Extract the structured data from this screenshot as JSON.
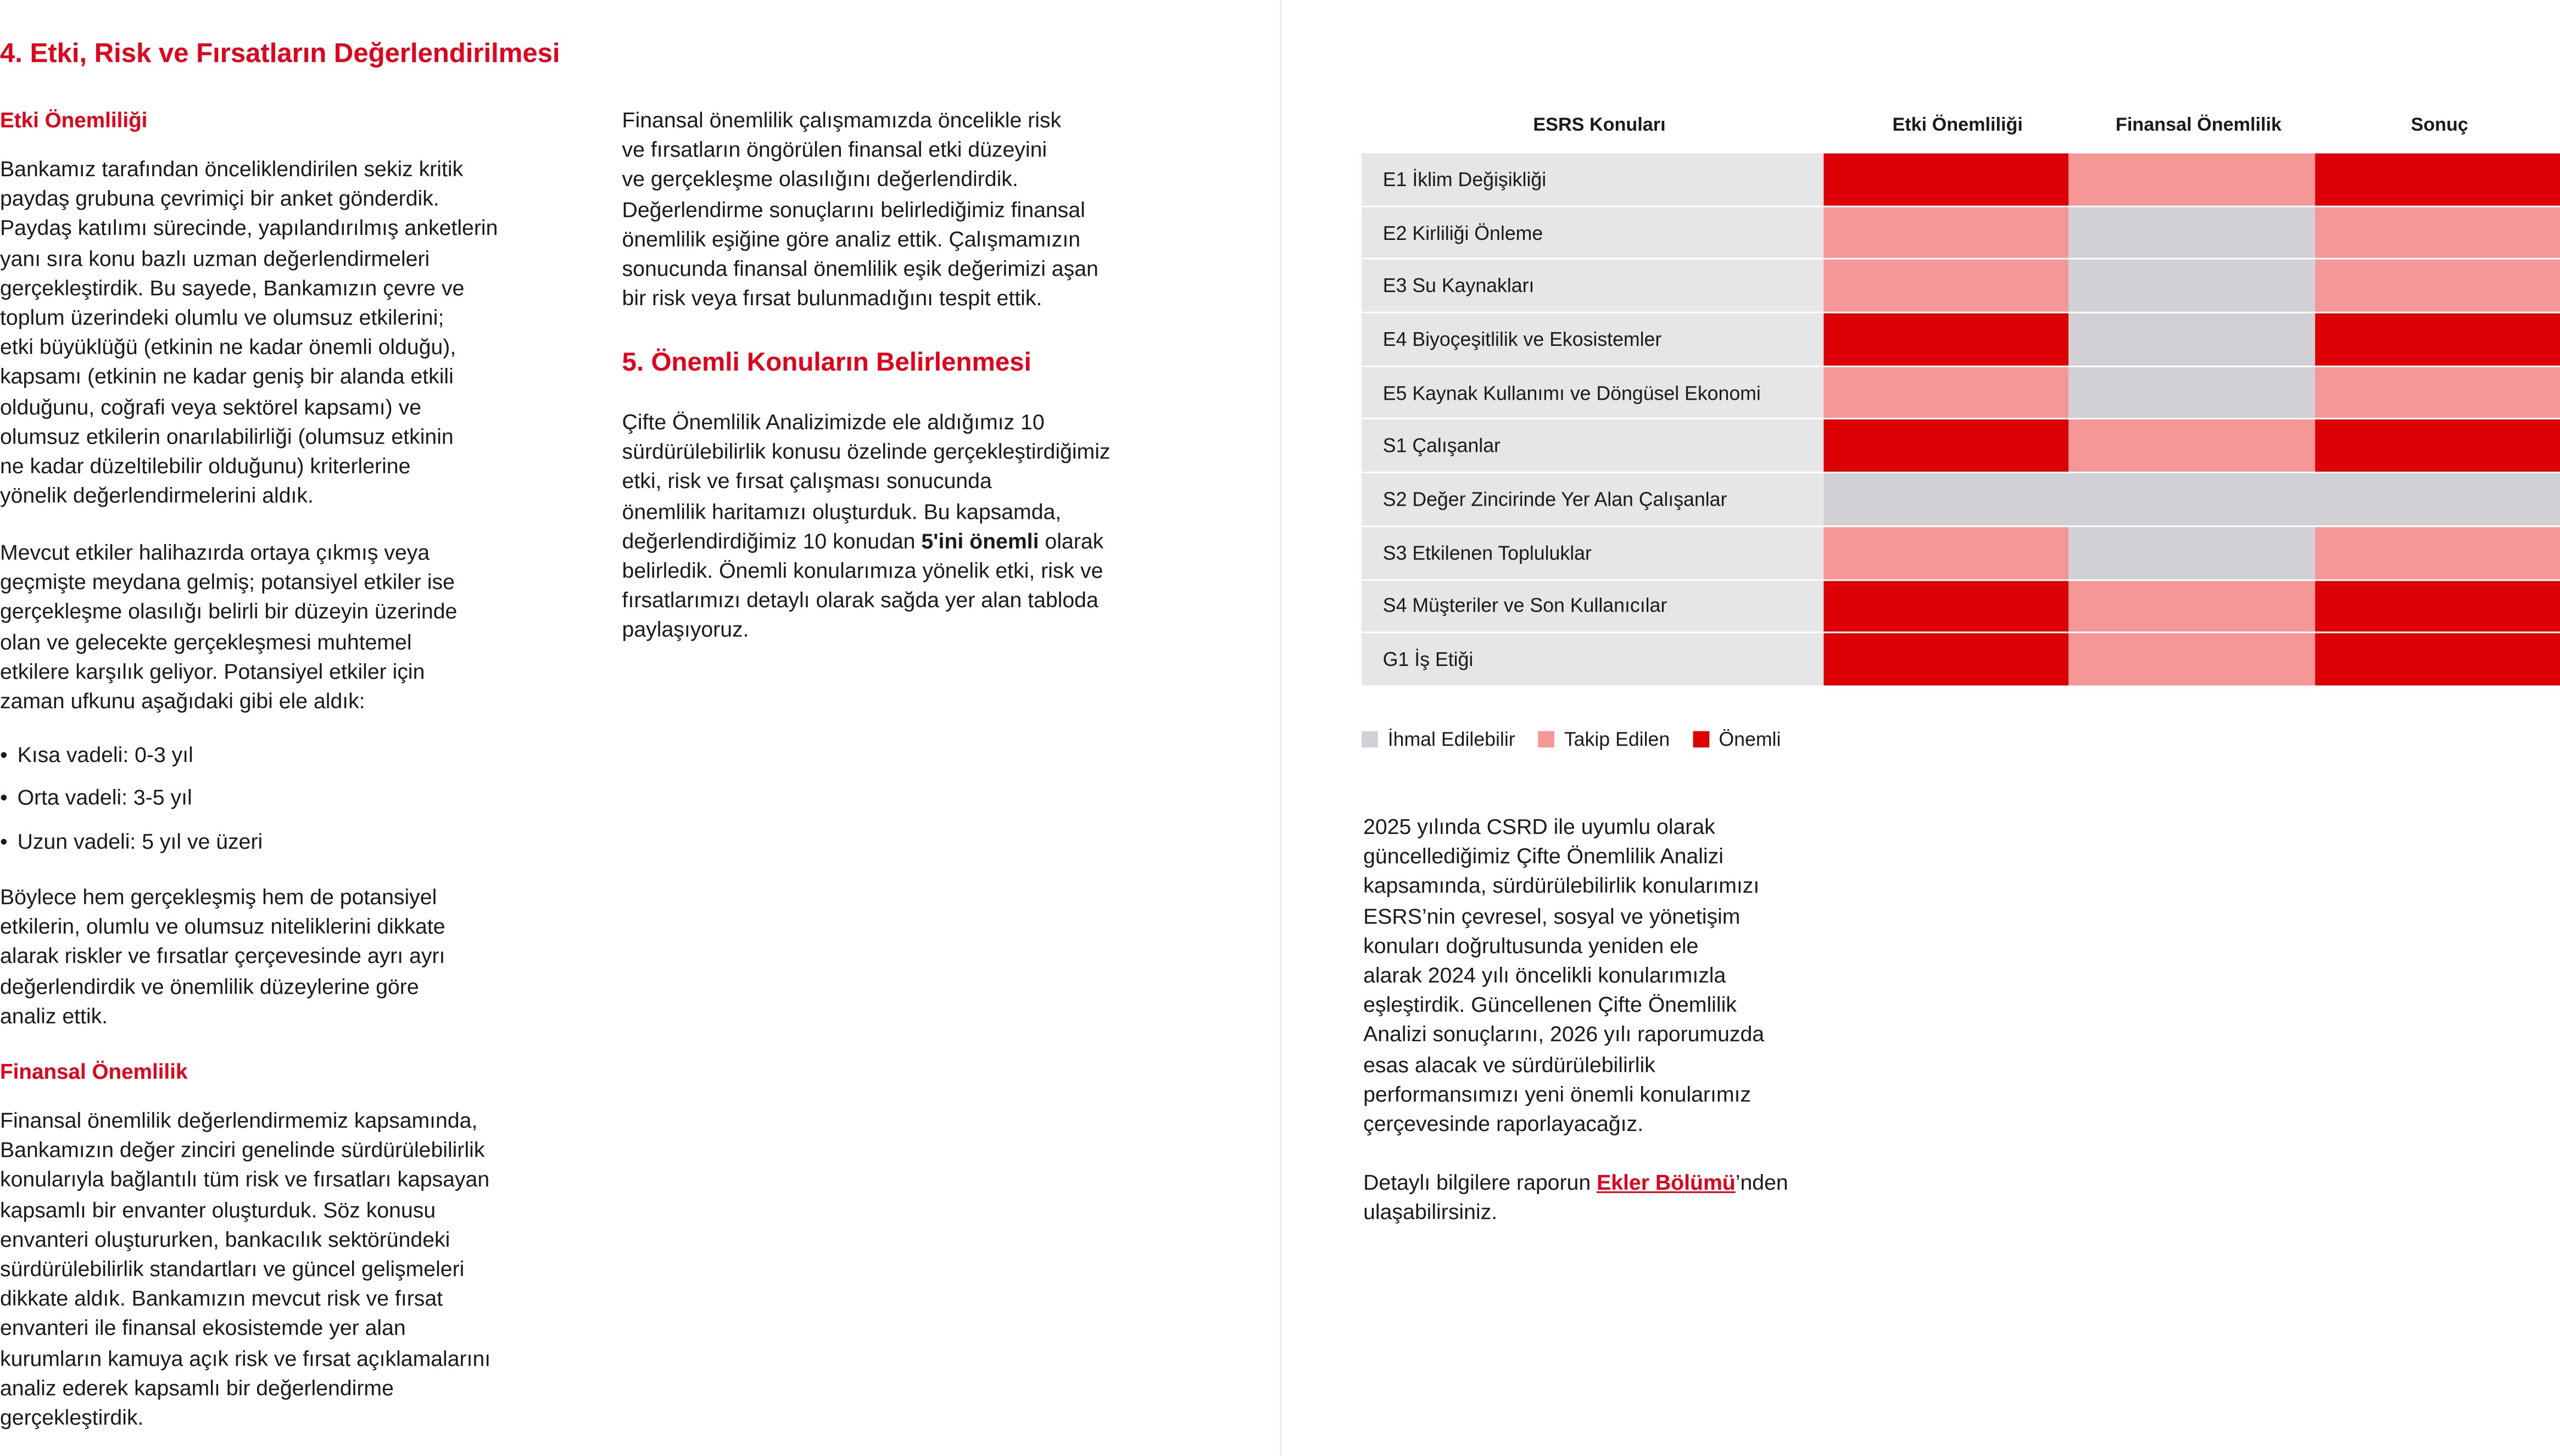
{
  "title": "4. Etki, Risk ve Fırsatların Değerlendirilmesi",
  "left": {
    "h_impact": "Etki Önemliliği",
    "p1": "Bankamız tarafından önceliklendirilen sekiz kritik\npaydaş grubuna çevrimiçi bir anket gönderdik.\nPaydaş katılımı sürecinde, yapılandırılmış anketlerin\nyanı sıra konu bazlı uzman değerlendirmeleri\ngerçekleştirdik. Bu sayede, Bankamızın çevre ve\ntoplum üzerindeki olumlu ve olumsuz etkilerini;\netki büyüklüğü (etkinin ne kadar önemli olduğu),\nkapsamı (etkinin ne kadar geniş bir alanda etkili\nolduğunu, coğrafi veya sektörel kapsamı) ve\nolumsuz etkilerin onarılabilirliği (olumsuz etkinin\nne kadar düzeltilebilir olduğunu) kriterlerine\nyönelik değerlendirmelerini aldık.",
    "p2": "Mevcut etkiler halihazırda ortaya çıkmış veya\ngeçmişte meydana gelmiş; potansiyel etkiler ise\ngerçekleşme olasılığı belirli bir düzeyin üzerinde\nolan ve gelecekte gerçekleşmesi muhtemel\netkilere karşılık geliyor. Potansiyel etkiler için\nzaman ufkunu aşağıdaki gibi ele aldık:",
    "bullets": [
      "Kısa vadeli: 0-3 yıl",
      "Orta vadeli: 3-5 yıl",
      "Uzun vadeli: 5 yıl ve üzeri"
    ],
    "p3": "Böylece hem gerçekleşmiş hem de potansiyel\netkilerin, olumlu ve olumsuz niteliklerini dikkate\nalarak riskler ve fırsatlar çerçevesinde ayrı ayrı\ndeğerlendirdik ve önemlilik düzeylerine göre\nanaliz ettik.",
    "h_fin": "Finansal Önemlilik",
    "p4": "Finansal önemlilik değerlendirmemiz kapsamında,\nBankamızın değer zinciri genelinde sürdürülebilirlik\nkonularıyla bağlantılı tüm risk ve fırsatları kapsayan\nkapsamlı bir envanter oluşturduk. Söz konusu\nenvanteri oluştururken, bankacılık sektöründeki\nsürdürülebilirlik standartları ve güncel gelişmeleri\ndikkate aldık. Bankamızın mevcut risk ve fırsat\nenvanteri ile finansal ekosistemde yer alan\nkurumların kamuya açık risk ve fırsat açıklamalarını\nanaliz ederek kapsamlı bir değerlendirme\ngerçekleştirdik."
  },
  "middle": {
    "p1": "Finansal önemlilik çalışmamızda öncelikle risk\nve fırsatların öngörülen finansal etki düzeyini\nve gerçekleşme olasılığını değerlendirdik.\nDeğerlendirme sonuçlarını belirlediğimiz finansal\nönemlilik eşiğine göre analiz ettik. Çalışmamızın\nsonucunda finansal önemlilik eşik değerimizi aşan\nbir risk veya fırsat bulunmadığını tespit ettik.",
    "h5": "5. Önemli Konuların Belirlenmesi",
    "p2a": "Çifte Önemlilik Analizimizde ele aldığımız 10\nsürdürülebilirlik konusu özelinde gerçekleştirdiğimiz\netki, risk ve fırsat çalışması sonucunda\nönemlilik haritamızı oluşturduk. Bu kapsamda,\ndeğerlendirdiğimiz 10 konudan ",
    "p2bold": "5'ini önemli",
    "p2b": " olarak\nbelirledik. Önemli konularımıza yönelik etki, risk ve\nfırsatlarımızı detaylı olarak sağda yer alan tabloda\npaylaşıyoruz."
  },
  "table": {
    "headers": [
      "ESRS Konuları",
      "Etki Önemliliği",
      "Finansal Önemlilik",
      "Sonuç"
    ],
    "colors": {
      "onemli": "#dc0005",
      "takip": "#f59797",
      "ihmal": "#d1d0d5"
    },
    "rows": [
      {
        "label": "E1 İklim Değişikliği",
        "levels": [
          "onemli",
          "takip",
          "onemli"
        ]
      },
      {
        "label": "E2 Kirliliği Önleme",
        "levels": [
          "takip",
          "ihmal",
          "takip"
        ]
      },
      {
        "label": "E3 Su Kaynakları",
        "levels": [
          "takip",
          "ihmal",
          "takip"
        ]
      },
      {
        "label": "E4 Biyoçeşitlilik ve Ekosistemler",
        "levels": [
          "onemli",
          "ihmal",
          "onemli"
        ]
      },
      {
        "label": "E5 Kaynak Kullanımı ve Döngüsel Ekonomi",
        "levels": [
          "takip",
          "ihmal",
          "takip"
        ]
      },
      {
        "label": "S1 Çalışanlar",
        "levels": [
          "onemli",
          "takip",
          "onemli"
        ]
      },
      {
        "label": "S2 Değer Zincirinde Yer Alan Çalışanlar",
        "levels": [
          "ihmal",
          "ihmal",
          "ihmal"
        ]
      },
      {
        "label": "S3 Etkilenen Topluluklar",
        "levels": [
          "takip",
          "ihmal",
          "takip"
        ]
      },
      {
        "label": "S4 Müşteriler ve Son Kullanıcılar",
        "levels": [
          "onemli",
          "takip",
          "onemli"
        ]
      },
      {
        "label": "G1 İş Etiği",
        "levels": [
          "onemli",
          "takip",
          "onemli"
        ]
      }
    ],
    "legend": [
      {
        "key": "ihmal",
        "label": "İhmal Edilebilir"
      },
      {
        "key": "takip",
        "label": "Takip Edilen"
      },
      {
        "key": "onemli",
        "label": "Önemli"
      }
    ]
  },
  "right": {
    "p1": "2025 yılında CSRD ile uyumlu olarak\ngüncellediğimiz Çifte Önemlilik Analizi\nkapsamında, sürdürülebilirlik konularımızı\nESRS’nin çevresel, sosyal ve yönetişim\nkonuları doğrultusunda yeniden ele\nalarak 2024 yılı öncelikli konularımızla\neşleştirdik. Güncellenen Çifte Önemlilik\nAnalizi sonuçlarını, 2026 yılı raporumuzda\nesas alacak ve sürdürülebilirlik\nperformansımızı yeni önemli konularımız\nçerçevesinde raporlayacağız.",
    "p2a": "Detaylı bilgilere raporun ",
    "link": "Ekler Bölümü",
    "p2b": "’nden\nulaşabilirsiniz."
  }
}
